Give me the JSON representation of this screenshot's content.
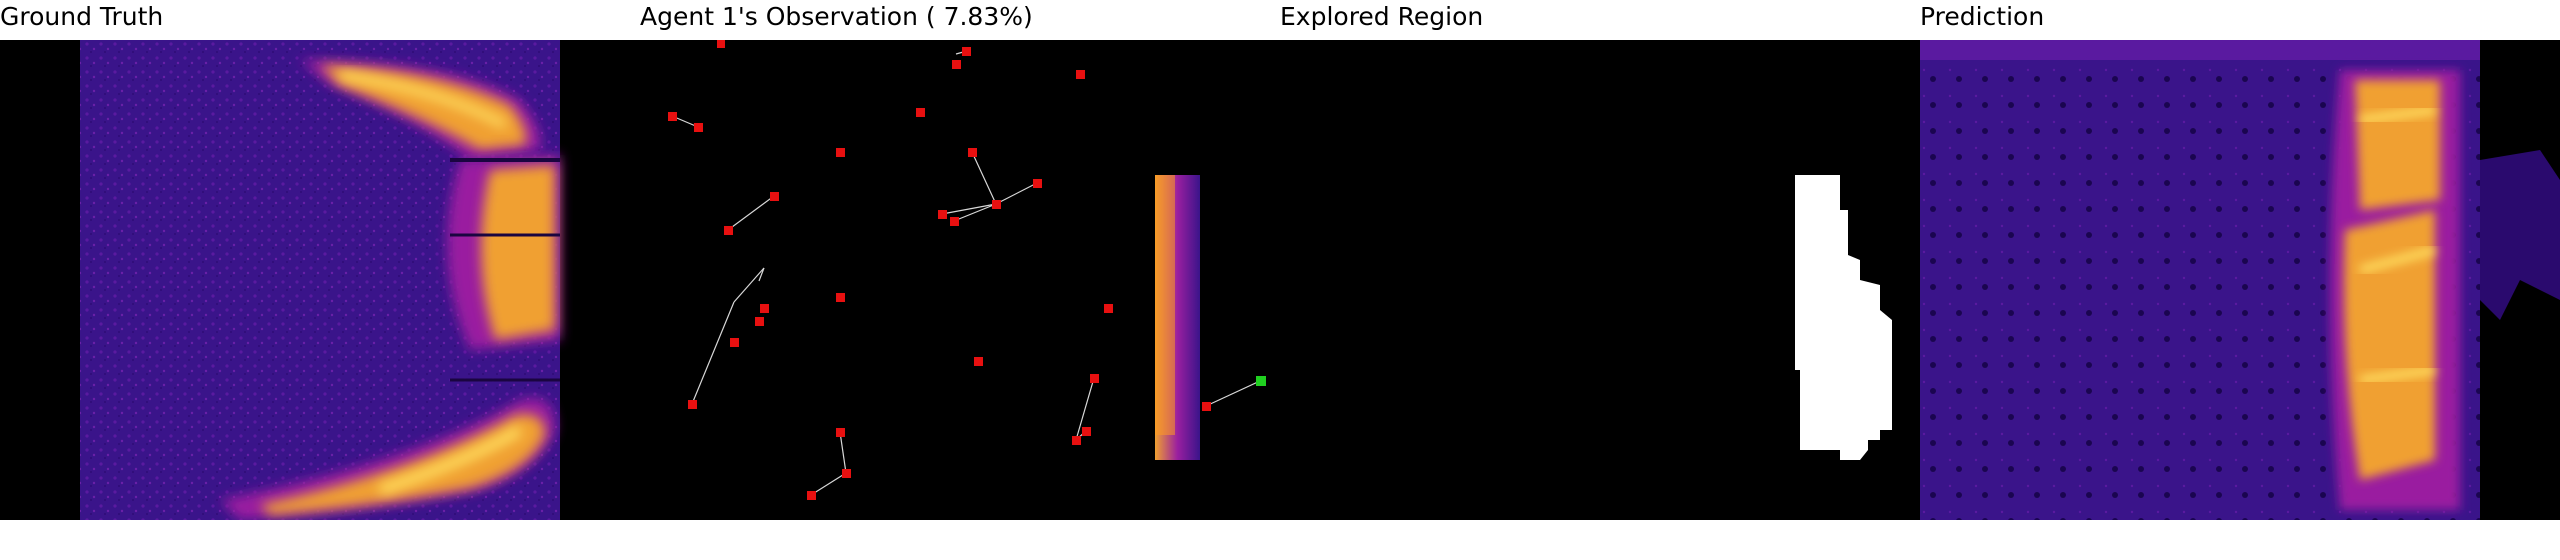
{
  "panels": [
    {
      "title": "Ground Truth"
    },
    {
      "title": "Agent 1's Observation ( 7.83%)"
    },
    {
      "title": "Explored Region"
    },
    {
      "title": "Prediction"
    }
  ],
  "colors": {
    "background": "#000000",
    "heat_low": "#2a0a6e",
    "heat_mid": "#9a1fa0",
    "heat_high": "#f0a030",
    "heat_peak": "#ffe060",
    "agent_marker": "#e81010",
    "active_agent_marker": "#20d020",
    "trajectory_line": "#d8d8d8",
    "explored_mask": "#ffffff"
  }
}
